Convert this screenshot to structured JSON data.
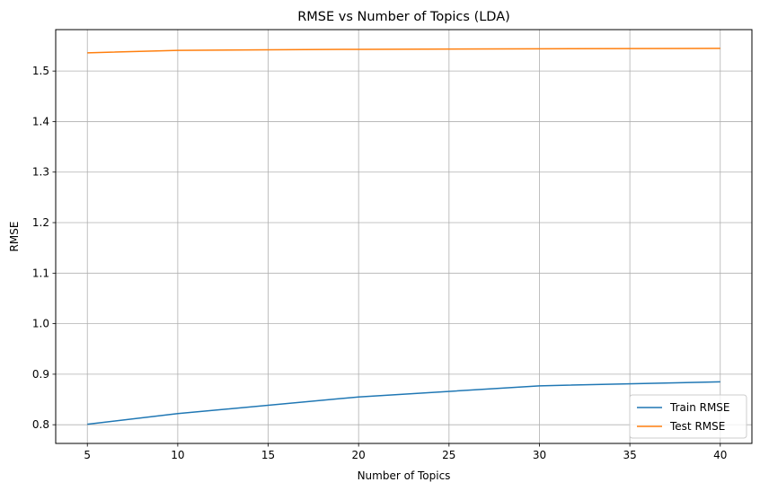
{
  "chart_data": {
    "type": "line",
    "title": "RMSE vs Number of Topics (LDA)",
    "xlabel": "Number of Topics",
    "ylabel": "RMSE",
    "x": [
      5,
      10,
      20,
      30,
      40
    ],
    "series": [
      {
        "name": "Train RMSE",
        "color": "#1f77b4",
        "values": [
          0.801,
          0.822,
          0.855,
          0.877,
          0.885
        ]
      },
      {
        "name": "Test RMSE",
        "color": "#ff7f0e",
        "values": [
          1.536,
          1.541,
          1.543,
          1.544,
          1.545
        ]
      }
    ],
    "xlim": [
      3.25,
      41.75
    ],
    "ylim": [
      0.763,
      1.582
    ],
    "xticks": [
      5,
      10,
      15,
      20,
      25,
      30,
      35,
      40
    ],
    "yticks": [
      0.8,
      0.9,
      1.0,
      1.1,
      1.2,
      1.3,
      1.4,
      1.5
    ],
    "grid": true,
    "legend_position": "lower-right"
  }
}
